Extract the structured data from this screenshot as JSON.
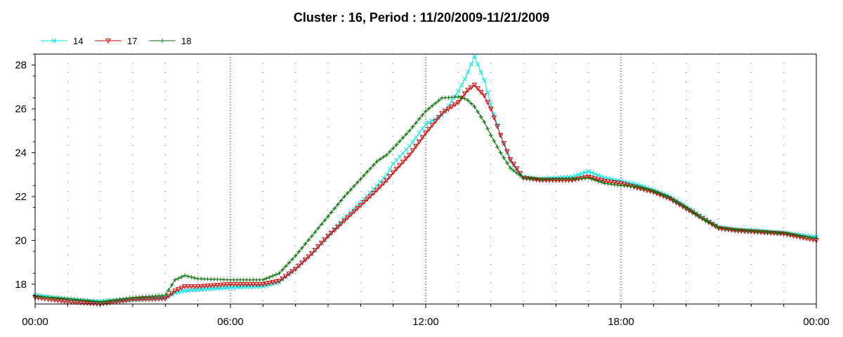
{
  "chart_data": {
    "type": "line",
    "title": "Cluster : 16, Period : 11/20/2009-11/21/2009",
    "xlabel": "",
    "ylabel": "",
    "x_unit": "time of day (hours from 00:00 11/20/2009)",
    "xlim": [
      0,
      24
    ],
    "ylim": [
      17.1,
      28.5
    ],
    "x_ticks": [
      {
        "value": 0,
        "label": "00:00"
      },
      {
        "value": 6,
        "label": "06:00"
      },
      {
        "value": 12,
        "label": "12:00"
      },
      {
        "value": 18,
        "label": "18:00"
      },
      {
        "value": 24,
        "label": "00:00"
      }
    ],
    "y_ticks": [
      {
        "value": 18,
        "label": "18"
      },
      {
        "value": 20,
        "label": "20"
      },
      {
        "value": 22,
        "label": "22"
      },
      {
        "value": 24,
        "label": "24"
      },
      {
        "value": 26,
        "label": "26"
      },
      {
        "value": 28,
        "label": "28"
      }
    ],
    "grid": "dotted",
    "legend_position": "top-left",
    "series": [
      {
        "name": "14",
        "color": "#00e5e5",
        "marker": "x",
        "points": [
          [
            0,
            17.5
          ],
          [
            1,
            17.3
          ],
          [
            2,
            17.2
          ],
          [
            3,
            17.3
          ],
          [
            4,
            17.4
          ],
          [
            4.3,
            17.6
          ],
          [
            4.6,
            17.7
          ],
          [
            5,
            17.75
          ],
          [
            6,
            17.85
          ],
          [
            7,
            17.9
          ],
          [
            7.5,
            18.1
          ],
          [
            8,
            18.7
          ],
          [
            8.5,
            19.4
          ],
          [
            9,
            20.2
          ],
          [
            9.5,
            21.0
          ],
          [
            10,
            21.7
          ],
          [
            10.5,
            22.5
          ],
          [
            10.8,
            23.0
          ],
          [
            11,
            23.5
          ],
          [
            11.5,
            24.3
          ],
          [
            12,
            25.3
          ],
          [
            12.5,
            25.7
          ],
          [
            13,
            26.8
          ],
          [
            13.25,
            27.5
          ],
          [
            13.5,
            28.4
          ],
          [
            13.8,
            27.3
          ],
          [
            14,
            26.2
          ],
          [
            14.3,
            24.8
          ],
          [
            14.6,
            23.6
          ],
          [
            15,
            22.9
          ],
          [
            15.5,
            22.8
          ],
          [
            16,
            22.85
          ],
          [
            16.5,
            22.9
          ],
          [
            17,
            23.15
          ],
          [
            17.5,
            22.85
          ],
          [
            18,
            22.7
          ],
          [
            18.5,
            22.55
          ],
          [
            19,
            22.3
          ],
          [
            19.5,
            22.0
          ],
          [
            20,
            21.55
          ],
          [
            20.5,
            21.05
          ],
          [
            21,
            20.6
          ],
          [
            21.5,
            20.5
          ],
          [
            22,
            20.45
          ],
          [
            22.5,
            20.4
          ],
          [
            23,
            20.35
          ],
          [
            23.5,
            20.25
          ],
          [
            24,
            20.15
          ]
        ]
      },
      {
        "name": "17",
        "color": "#d00000",
        "marker": "triangle-down",
        "points": [
          [
            0,
            17.4
          ],
          [
            1,
            17.2
          ],
          [
            2,
            17.1
          ],
          [
            3,
            17.3
          ],
          [
            4,
            17.35
          ],
          [
            4.3,
            17.7
          ],
          [
            4.6,
            17.9
          ],
          [
            5,
            17.9
          ],
          [
            6,
            18.0
          ],
          [
            7,
            18.0
          ],
          [
            7.5,
            18.15
          ],
          [
            8,
            18.7
          ],
          [
            8.5,
            19.4
          ],
          [
            9,
            20.2
          ],
          [
            9.5,
            20.9
          ],
          [
            10,
            21.6
          ],
          [
            10.5,
            22.3
          ],
          [
            10.8,
            22.75
          ],
          [
            11,
            23.1
          ],
          [
            11.5,
            23.9
          ],
          [
            12,
            24.9
          ],
          [
            12.5,
            25.8
          ],
          [
            13,
            26.3
          ],
          [
            13.25,
            26.8
          ],
          [
            13.5,
            27.1
          ],
          [
            13.8,
            26.6
          ],
          [
            14,
            26.0
          ],
          [
            14.3,
            24.8
          ],
          [
            14.6,
            23.7
          ],
          [
            15,
            22.85
          ],
          [
            15.5,
            22.75
          ],
          [
            16,
            22.75
          ],
          [
            16.5,
            22.75
          ],
          [
            17,
            22.9
          ],
          [
            17.5,
            22.7
          ],
          [
            18,
            22.6
          ],
          [
            18.5,
            22.4
          ],
          [
            19,
            22.2
          ],
          [
            19.5,
            21.9
          ],
          [
            20,
            21.45
          ],
          [
            20.5,
            21.0
          ],
          [
            21,
            20.55
          ],
          [
            21.5,
            20.45
          ],
          [
            22,
            20.4
          ],
          [
            22.5,
            20.35
          ],
          [
            23,
            20.3
          ],
          [
            23.5,
            20.15
          ],
          [
            24,
            20.0
          ]
        ]
      },
      {
        "name": "18",
        "color": "#007000",
        "marker": "plus",
        "points": [
          [
            0,
            17.45
          ],
          [
            1,
            17.35
          ],
          [
            2,
            17.2
          ],
          [
            3,
            17.4
          ],
          [
            4,
            17.5
          ],
          [
            4.3,
            18.2
          ],
          [
            4.6,
            18.4
          ],
          [
            5,
            18.25
          ],
          [
            6,
            18.2
          ],
          [
            7,
            18.2
          ],
          [
            7.5,
            18.5
          ],
          [
            8,
            19.3
          ],
          [
            8.5,
            20.2
          ],
          [
            9,
            21.1
          ],
          [
            9.5,
            22.0
          ],
          [
            10,
            22.8
          ],
          [
            10.5,
            23.6
          ],
          [
            10.8,
            23.9
          ],
          [
            11,
            24.2
          ],
          [
            11.5,
            25.0
          ],
          [
            12,
            25.9
          ],
          [
            12.5,
            26.5
          ],
          [
            13,
            26.55
          ],
          [
            13.25,
            26.45
          ],
          [
            13.5,
            26.1
          ],
          [
            13.8,
            25.4
          ],
          [
            14,
            24.8
          ],
          [
            14.3,
            24.0
          ],
          [
            14.6,
            23.3
          ],
          [
            15,
            22.85
          ],
          [
            15.5,
            22.8
          ],
          [
            16,
            22.8
          ],
          [
            16.5,
            22.8
          ],
          [
            17,
            22.85
          ],
          [
            17.5,
            22.6
          ],
          [
            18,
            22.5
          ],
          [
            18.5,
            22.45
          ],
          [
            19,
            22.25
          ],
          [
            19.5,
            21.95
          ],
          [
            20,
            21.5
          ],
          [
            20.5,
            21.0
          ],
          [
            21,
            20.6
          ],
          [
            21.5,
            20.5
          ],
          [
            22,
            20.45
          ],
          [
            22.5,
            20.4
          ],
          [
            23,
            20.35
          ],
          [
            23.5,
            20.2
          ],
          [
            24,
            20.1
          ]
        ]
      }
    ]
  }
}
